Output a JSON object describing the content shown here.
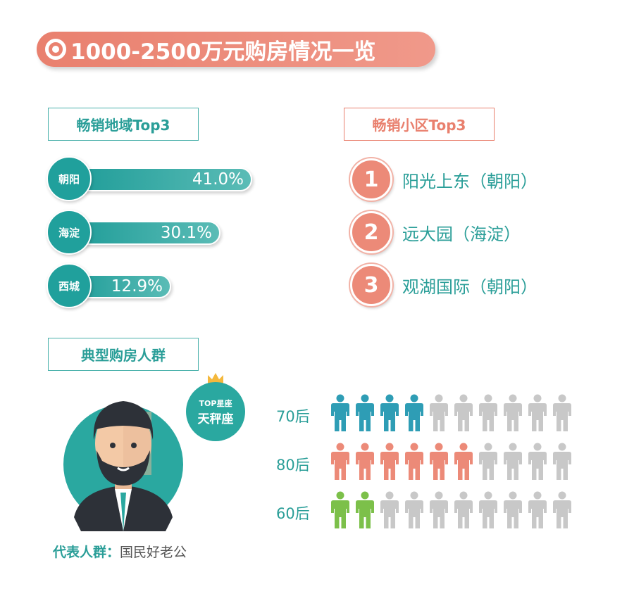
{
  "title": "1000-2500万元购房情况一览",
  "colors": {
    "teal": "#2aa8a0",
    "salmon": "#ec8a78",
    "green": "#7cc04a",
    "gray": "#c8c8c8"
  },
  "regions": {
    "label": "畅销地域Top3",
    "items": [
      {
        "name": "朝阳",
        "value": "41.0%",
        "pct": 41.0
      },
      {
        "name": "海淀",
        "value": "30.1%",
        "pct": 30.1
      },
      {
        "name": "西城",
        "value": "12.9%",
        "pct": 12.9
      }
    ]
  },
  "communities": {
    "label": "畅销小区Top3",
    "items": [
      {
        "rank": "1",
        "name": "阳光上东（朝阳）"
      },
      {
        "rank": "2",
        "name": "远大园（海淀）"
      },
      {
        "rank": "3",
        "name": "观湖国际（朝阳）"
      }
    ]
  },
  "buyers": {
    "label": "典型购房人群",
    "badge_top": "TOP星座",
    "badge_main": "天秤座",
    "rep_label": "代表人群：",
    "rep_value": "国民好老公",
    "rows": [
      {
        "label": "70后",
        "filled": 4,
        "total": 10,
        "color": "#2e9db5"
      },
      {
        "label": "80后",
        "filled": 6,
        "total": 10,
        "color": "#ec8a78"
      },
      {
        "label": "60后",
        "filled": 2,
        "total": 10,
        "color": "#7cc04a"
      }
    ]
  }
}
